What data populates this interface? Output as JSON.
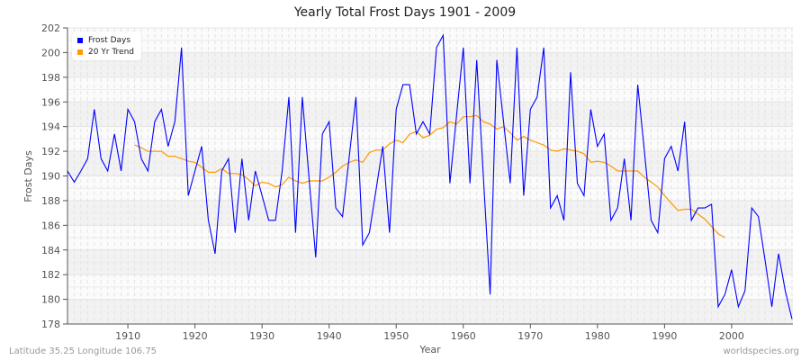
{
  "title": "Yearly Total Frost Days 1901 - 2009",
  "footer": {
    "location": "Latitude 35.25 Longitude 106.75",
    "source": "worldspecies.org"
  },
  "legend": {
    "items": [
      {
        "label": "Frost Days",
        "color": "#0000ff"
      },
      {
        "label": "20 Yr Trend",
        "color": "#ff9900"
      }
    ]
  },
  "axes": {
    "xlabel": "Year",
    "ylabel": "Frost Days",
    "xticks": [
      1910,
      1920,
      1930,
      1940,
      1950,
      1960,
      1970,
      1980,
      1990,
      2000
    ],
    "yticks": [
      178,
      180,
      182,
      184,
      186,
      188,
      190,
      192,
      194,
      196,
      198,
      200,
      202
    ]
  },
  "chart_data": {
    "type": "line",
    "title": "Yearly Total Frost Days 1901 - 2009",
    "xlabel": "Year",
    "ylabel": "Frost Days",
    "xlim": [
      1901,
      2009
    ],
    "ylim": [
      178,
      202
    ],
    "grid": true,
    "legend_position": "top-left",
    "series": [
      {
        "name": "Frost Days",
        "color": "#0000ff",
        "x_start": 1901,
        "values": [
          190.4,
          189.5,
          190.4,
          191.4,
          195.4,
          191.4,
          190.4,
          193.4,
          190.4,
          195.4,
          194.4,
          191.4,
          190.4,
          194.4,
          195.4,
          192.4,
          194.4,
          200.4,
          188.4,
          190.4,
          192.4,
          186.4,
          183.7,
          190.4,
          191.4,
          185.4,
          191.4,
          186.4,
          190.4,
          188.4,
          186.4,
          186.4,
          190.4,
          196.4,
          185.4,
          196.4,
          189.9,
          183.4,
          193.4,
          194.4,
          187.4,
          186.7,
          191.6,
          196.4,
          184.4,
          185.4,
          188.9,
          192.4,
          185.4,
          195.4,
          197.4,
          197.4,
          193.4,
          194.4,
          193.4,
          200.4,
          201.4,
          189.4,
          194.9,
          200.4,
          189.4,
          199.4,
          189.9,
          180.4,
          199.4,
          194.4,
          189.4,
          200.4,
          188.4,
          195.4,
          196.4,
          200.4,
          187.4,
          188.4,
          186.4,
          198.4,
          189.4,
          188.4,
          195.4,
          192.4,
          193.4,
          186.4,
          187.4,
          191.4,
          186.4,
          197.4,
          192.0,
          186.4,
          185.4,
          191.4,
          192.4,
          190.4,
          194.4,
          186.4,
          187.4,
          187.4,
          187.7,
          179.4,
          180.4,
          182.4,
          179.4,
          180.7,
          187.4,
          186.7,
          183.1,
          179.4,
          183.7,
          180.7,
          178.4
        ]
      },
      {
        "name": "20 Yr Trend",
        "color": "#ff9900",
        "x_start": 1911,
        "values": [
          192.5,
          192.3,
          192.0,
          192.0,
          192.0,
          191.6,
          191.6,
          191.4,
          191.2,
          191.1,
          190.7,
          190.3,
          190.3,
          190.6,
          190.2,
          190.2,
          190.1,
          189.7,
          189.2,
          189.5,
          189.4,
          189.1,
          189.3,
          189.9,
          189.6,
          189.4,
          189.6,
          189.6,
          189.6,
          189.9,
          190.3,
          190.8,
          191.1,
          191.3,
          191.1,
          191.9,
          192.1,
          192.1,
          192.6,
          192.9,
          192.7,
          193.4,
          193.6,
          193.1,
          193.3,
          193.8,
          193.9,
          194.4,
          194.2,
          194.8,
          194.8,
          194.9,
          194.4,
          194.2,
          193.8,
          194.0,
          193.5,
          192.9,
          193.2,
          192.9,
          192.7,
          192.5,
          192.1,
          192.0,
          192.2,
          192.1,
          192.0,
          191.8,
          191.1,
          191.2,
          191.1,
          190.8,
          190.4,
          190.4,
          190.4,
          190.4,
          189.9,
          189.5,
          189.1,
          188.4,
          187.8,
          187.2,
          187.3,
          187.3,
          186.9,
          186.5,
          185.9,
          185.3,
          185.0
        ]
      }
    ]
  }
}
